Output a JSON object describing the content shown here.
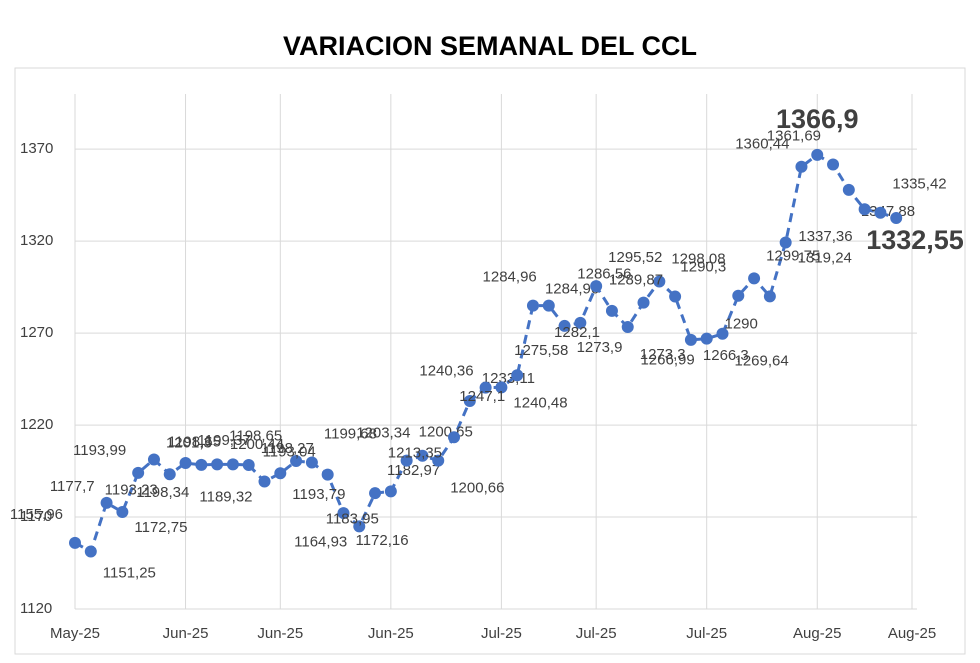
{
  "chart_data": {
    "type": "line",
    "title": "VARIACION SEMANAL DEL CCL",
    "categories": [
      "May-25",
      null,
      null,
      null,
      null,
      null,
      null,
      "Jun-25",
      null,
      null,
      null,
      null,
      null,
      "Jun-25",
      null,
      null,
      null,
      null,
      null,
      null,
      "Jun-25",
      null,
      null,
      null,
      null,
      null,
      null,
      "Jul-25",
      null,
      null,
      null,
      null,
      null,
      "Jul-25",
      null,
      null,
      null,
      null,
      null,
      null,
      "Jul-25",
      null,
      null,
      null,
      null,
      null,
      null,
      "Aug-25",
      null,
      null,
      null,
      null,
      null,
      "Aug-25"
    ],
    "series": [
      {
        "name": "CCL",
        "color": "#4472c4",
        "values": [
          1155.96,
          1151.25,
          1177.7,
          1172.75,
          1193.99,
          1201.3,
          1193.23,
          1199.37,
          1198.34,
          1198.65,
          1198.65,
          1198.27,
          1189.32,
          1193.79,
          1200.44,
          1199.68,
          1193.04,
          1172.16,
          1164.93,
          1182.97,
          1183.95,
          1200.65,
          1203.34,
          1200.66,
          1213.35,
          1233.11,
          1240.36,
          1240.48,
          1247.1,
          1284.96,
          1284.96,
          1273.9,
          1275.58,
          1295.52,
          1282.1,
          1273.3,
          1286.56,
          1298.08,
          1289.87,
          1266.3,
          1266.99,
          1269.64,
          1290.3,
          1299.75,
          1290,
          1319.24,
          1360.44,
          1366.9,
          1361.69,
          1347.88,
          1337.36,
          1335.42,
          1332.55,
          null
        ],
        "value_labels": [
          "1155,96",
          "1151,25",
          "1177,7",
          "1172,75",
          "1193,99",
          "1201,3",
          "1193,23",
          "1199,37",
          "1198,34",
          "1198,65",
          "1198,65",
          "1198,27",
          "1189,32",
          "1193,79",
          "1200,44",
          "1199,68",
          "1193,04",
          "1172,16",
          "1164,93",
          "1182,97",
          "1183,95",
          "1200,65",
          "1203,34",
          "1200,66",
          "1213,35",
          "1233,11",
          "1240,36",
          "1240,48",
          "1247,1",
          "1284,96",
          "1284,96",
          "1273,9",
          "1275,58",
          "1295,52",
          "1282,1",
          "1273,3",
          "1286,56",
          "1298,08",
          "1289,87",
          "1266,3",
          "1266,99",
          "1269,64",
          "1290,3",
          "1299,75",
          "1290",
          "1319,24",
          "1360,44",
          "1366,9",
          "1361,69",
          "1347,88",
          "1337,36",
          "1335,42",
          "1332,55",
          null
        ]
      }
    ],
    "ylim": [
      1120,
      1400
    ],
    "yticks": [
      1120,
      1170,
      1220,
      1270,
      1320,
      1370
    ],
    "grid": true
  }
}
